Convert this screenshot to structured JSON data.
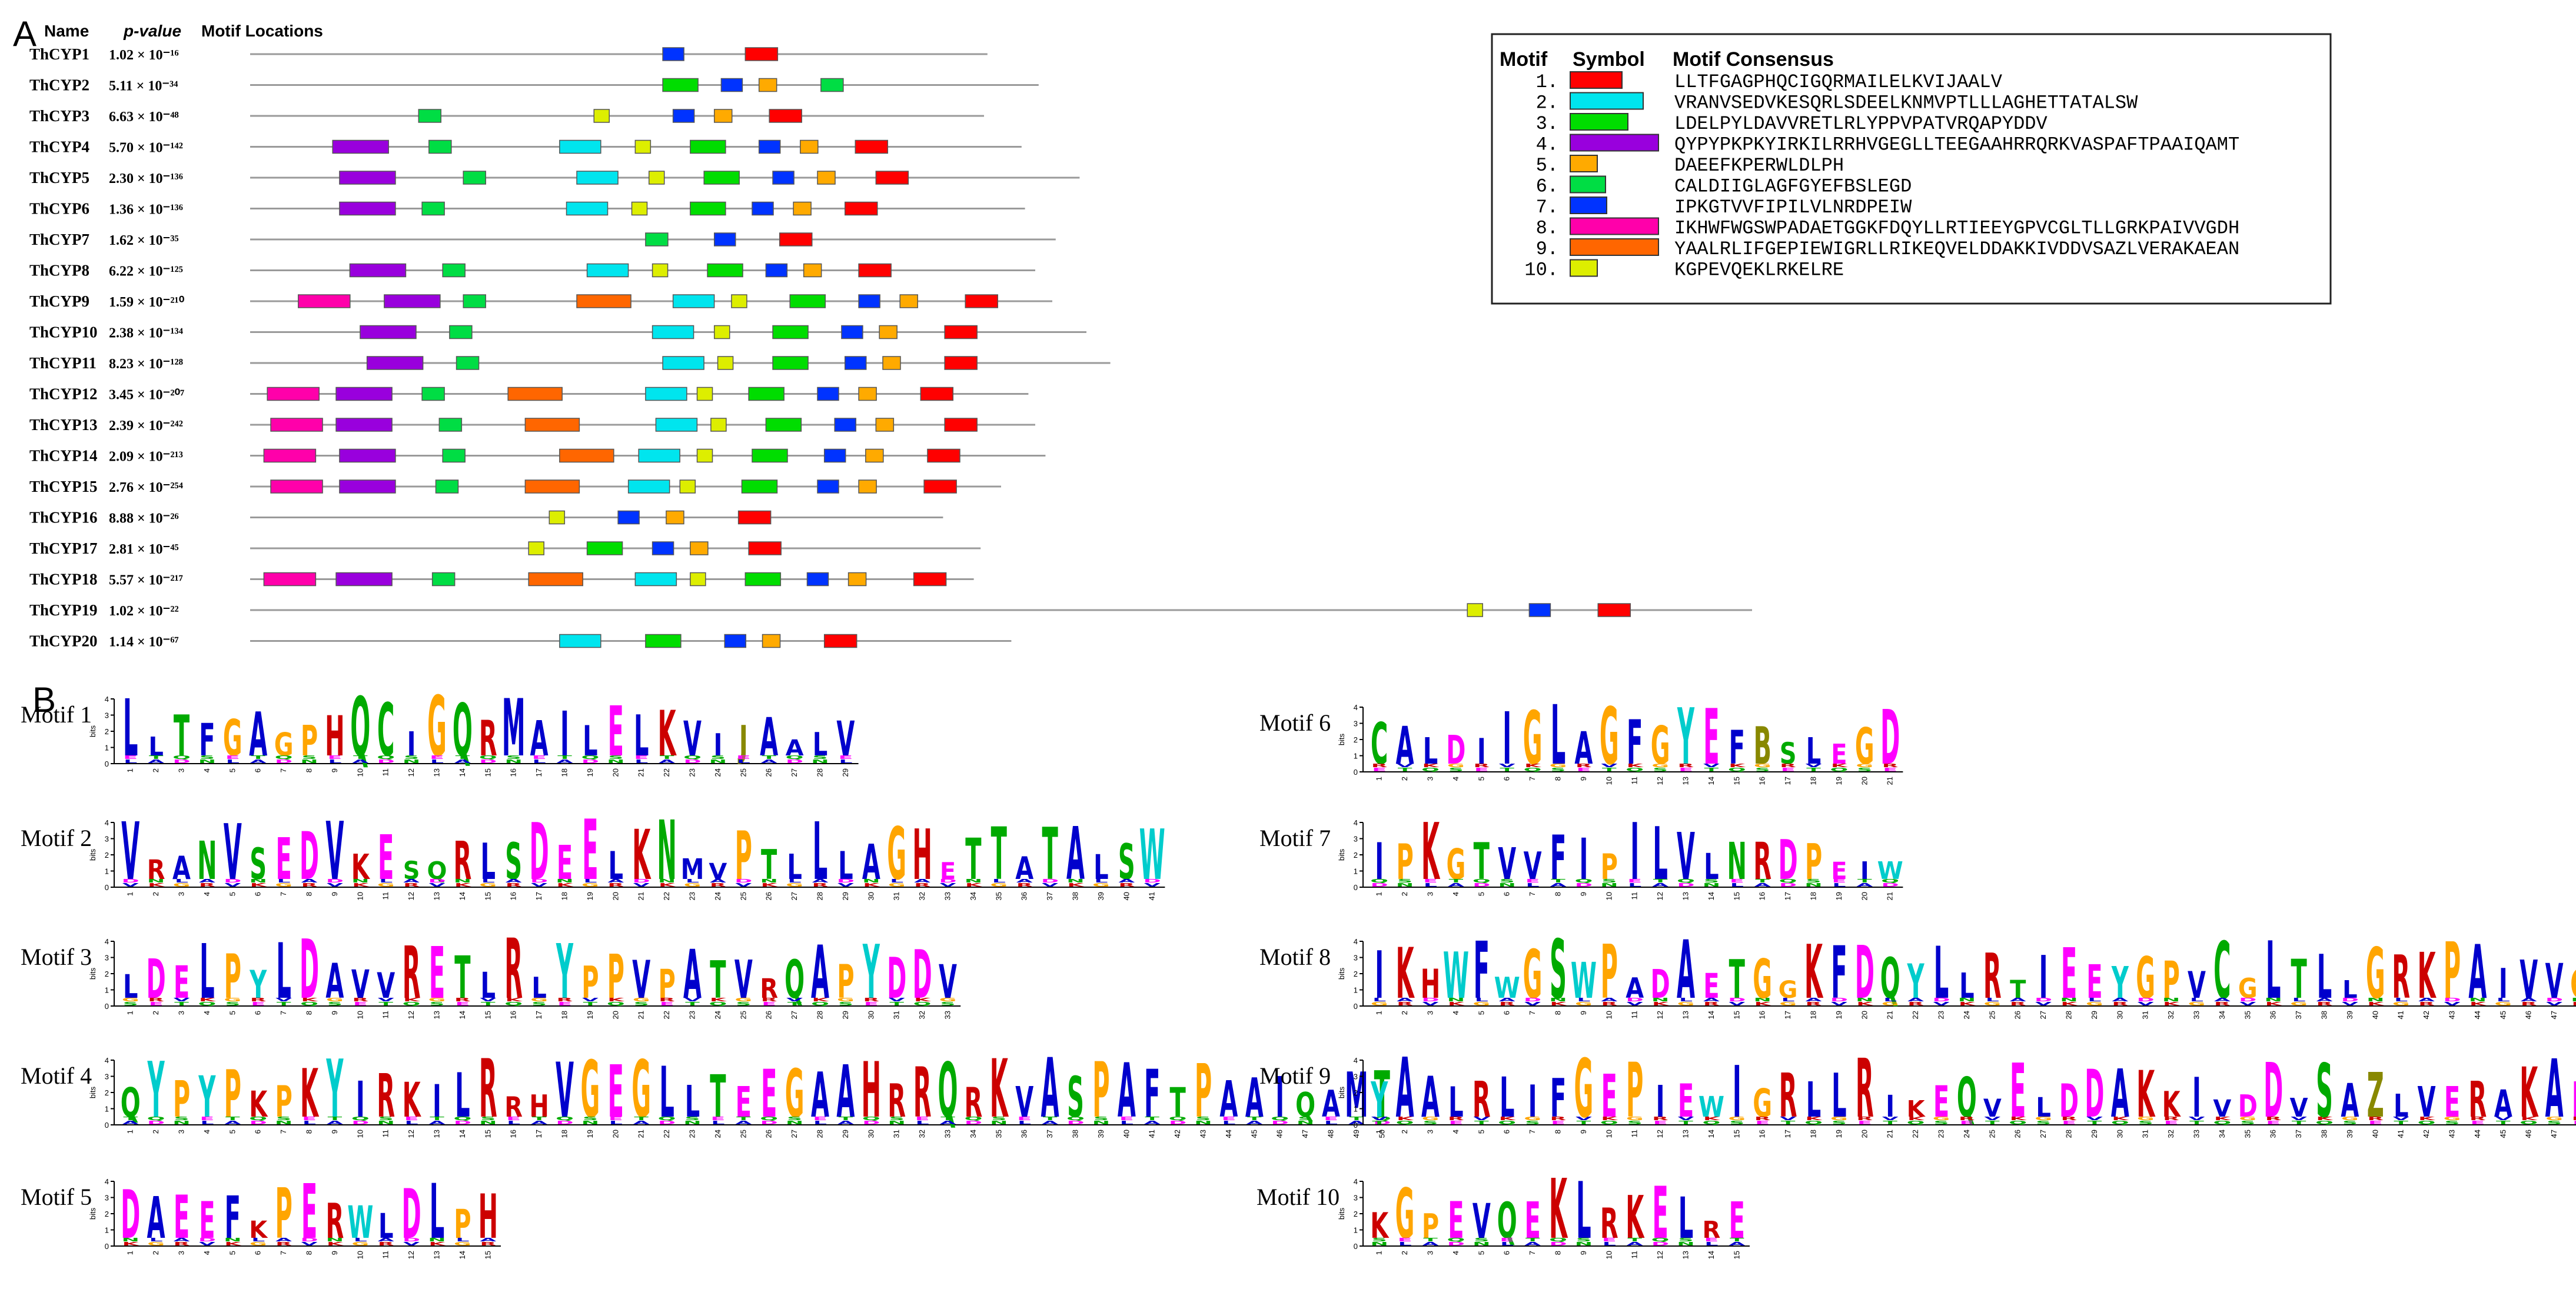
{
  "panel_a": {
    "letter": "A",
    "headers": {
      "name": "Name",
      "pvalue": "p-value",
      "locations": "Motif Locations"
    },
    "motif_colors": {
      "1": "#ff0000",
      "2": "#00e5ee",
      "3": "#00dd00",
      "4": "#9900dd",
      "5": "#ffaa00",
      "6": "#00dd44",
      "7": "#0033ff",
      "8": "#ff00aa",
      "9": "#ff6600",
      "10": "#ddee00"
    },
    "genes": [
      {
        "name": "ThCYP1",
        "pvalue": "1.02 × 10⁻¹⁶",
        "length": 216,
        "motifs": [
          [
            7,
            180
          ],
          [
            1,
            204
          ]
        ]
      },
      {
        "name": "ThCYP2",
        "pvalue": "5.11 × 10⁻³⁴",
        "length": 231,
        "motifs": [
          [
            3,
            180
          ],
          [
            7,
            197
          ],
          [
            5,
            208
          ],
          [
            6,
            226
          ]
        ]
      },
      {
        "name": "ThCYP3",
        "pvalue": "6.63 × 10⁻⁴⁸",
        "length": 215,
        "motifs": [
          [
            6,
            109
          ],
          [
            10,
            160
          ],
          [
            7,
            183
          ],
          [
            5,
            195
          ],
          [
            1,
            211
          ]
        ]
      },
      {
        "name": "ThCYP4",
        "pvalue": "5.70 × 10⁻¹⁴²",
        "length": 226,
        "motifs": [
          [
            4,
            84
          ],
          [
            6,
            112
          ],
          [
            2,
            150
          ],
          [
            10,
            172
          ],
          [
            3,
            188
          ],
          [
            7,
            208
          ],
          [
            5,
            220
          ],
          [
            1,
            236
          ]
        ]
      },
      {
        "name": "ThCYP5",
        "pvalue": "2.30 × 10⁻¹³⁶",
        "length": 243,
        "motifs": [
          [
            4,
            86
          ],
          [
            6,
            122
          ],
          [
            2,
            155
          ],
          [
            10,
            176
          ],
          [
            3,
            192
          ],
          [
            7,
            212
          ],
          [
            5,
            225
          ],
          [
            1,
            242
          ]
        ]
      },
      {
        "name": "ThCYP6",
        "pvalue": "1.36 × 10⁻¹³⁶",
        "length": 227,
        "motifs": [
          [
            4,
            86
          ],
          [
            6,
            110
          ],
          [
            2,
            152
          ],
          [
            10,
            171
          ],
          [
            3,
            188
          ],
          [
            7,
            206
          ],
          [
            5,
            218
          ],
          [
            1,
            233
          ]
        ]
      },
      {
        "name": "ThCYP7",
        "pvalue": "1.62 × 10⁻³⁵",
        "length": 236,
        "motifs": [
          [
            6,
            175
          ],
          [
            7,
            195
          ],
          [
            1,
            214
          ]
        ]
      },
      {
        "name": "ThCYP8",
        "pvalue": "6.22 × 10⁻¹²⁵",
        "length": 230,
        "motifs": [
          [
            4,
            89
          ],
          [
            6,
            116
          ],
          [
            2,
            158
          ],
          [
            10,
            177
          ],
          [
            3,
            193
          ],
          [
            7,
            210
          ],
          [
            5,
            221
          ],
          [
            1,
            237
          ]
        ]
      },
      {
        "name": "ThCYP9",
        "pvalue": "1.59 × 10⁻²¹⁰",
        "length": 235,
        "motifs": [
          [
            8,
            74
          ],
          [
            4,
            99
          ],
          [
            6,
            122
          ],
          [
            9,
            155
          ],
          [
            2,
            183
          ],
          [
            10,
            200
          ],
          [
            3,
            217
          ],
          [
            7,
            237
          ],
          [
            5,
            249
          ],
          [
            1,
            268
          ]
        ]
      },
      {
        "name": "ThCYP10",
        "pvalue": "2.38 × 10⁻¹³⁴",
        "length": 245,
        "motifs": [
          [
            4,
            92
          ],
          [
            6,
            118
          ],
          [
            2,
            177
          ],
          [
            10,
            195
          ],
          [
            3,
            212
          ],
          [
            7,
            232
          ],
          [
            5,
            243
          ],
          [
            1,
            262
          ]
        ]
      },
      {
        "name": "ThCYP11",
        "pvalue": "8.23 × 10⁻¹²⁸",
        "length": 252,
        "motifs": [
          [
            4,
            94
          ],
          [
            6,
            120
          ],
          [
            2,
            180
          ],
          [
            10,
            196
          ],
          [
            3,
            212
          ],
          [
            7,
            233
          ],
          [
            5,
            244
          ],
          [
            1,
            262
          ]
        ]
      },
      {
        "name": "ThCYP12",
        "pvalue": "3.45 × 10⁻²⁰⁷",
        "length": 228,
        "motifs": [
          [
            8,
            65
          ],
          [
            4,
            85
          ],
          [
            6,
            110
          ],
          [
            9,
            135
          ],
          [
            2,
            175
          ],
          [
            10,
            190
          ],
          [
            3,
            205
          ],
          [
            7,
            225
          ],
          [
            5,
            237
          ],
          [
            1,
            255
          ]
        ]
      },
      {
        "name": "ThCYP13",
        "pvalue": "2.39 × 10⁻²⁴²",
        "length": 230,
        "motifs": [
          [
            8,
            66
          ],
          [
            4,
            85
          ],
          [
            6,
            115
          ],
          [
            9,
            140
          ],
          [
            2,
            178
          ],
          [
            10,
            194
          ],
          [
            3,
            210
          ],
          [
            7,
            230
          ],
          [
            5,
            242
          ],
          [
            1,
            262
          ]
        ]
      },
      {
        "name": "ThCYP14",
        "pvalue": "2.09 × 10⁻²¹³",
        "length": 233,
        "motifs": [
          [
            8,
            64
          ],
          [
            4,
            86
          ],
          [
            6,
            116
          ],
          [
            9,
            150
          ],
          [
            2,
            173
          ],
          [
            10,
            190
          ],
          [
            3,
            206
          ],
          [
            7,
            227
          ],
          [
            5,
            239
          ],
          [
            1,
            257
          ]
        ]
      },
      {
        "name": "ThCYP15",
        "pvalue": "2.76 × 10⁻²⁵⁴",
        "length": 220,
        "motifs": [
          [
            8,
            66
          ],
          [
            4,
            86
          ],
          [
            6,
            114
          ],
          [
            9,
            140
          ],
          [
            2,
            170
          ],
          [
            10,
            185
          ],
          [
            3,
            203
          ],
          [
            7,
            225
          ],
          [
            5,
            237
          ],
          [
            1,
            256
          ]
        ]
      },
      {
        "name": "ThCYP16",
        "pvalue": "8.88 × 10⁻²⁶",
        "length": 203,
        "motifs": [
          [
            10,
            147
          ],
          [
            7,
            167
          ],
          [
            5,
            181
          ],
          [
            1,
            202
          ]
        ]
      },
      {
        "name": "ThCYP17",
        "pvalue": "2.81 × 10⁻⁴⁵",
        "length": 214,
        "motifs": [
          [
            10,
            141
          ],
          [
            3,
            158
          ],
          [
            7,
            177
          ],
          [
            5,
            188
          ],
          [
            1,
            205
          ]
        ]
      },
      {
        "name": "ThCYP18",
        "pvalue": "5.57 × 10⁻²¹⁷",
        "length": 212,
        "motifs": [
          [
            8,
            64
          ],
          [
            4,
            85
          ],
          [
            6,
            113
          ],
          [
            9,
            141
          ],
          [
            2,
            172
          ],
          [
            10,
            188
          ],
          [
            3,
            204
          ],
          [
            7,
            222
          ],
          [
            5,
            234
          ],
          [
            1,
            253
          ]
        ]
      },
      {
        "name": "ThCYP19",
        "pvalue": "1.02 × 10⁻²²",
        "length": 440,
        "motifs": [
          [
            10,
            414
          ],
          [
            7,
            432
          ],
          [
            1,
            452
          ]
        ]
      },
      {
        "name": "ThCYP20",
        "pvalue": "1.14 × 10⁻⁶⁷",
        "length": 223,
        "motifs": [
          [
            2,
            150
          ],
          [
            3,
            175
          ],
          [
            7,
            198
          ],
          [
            5,
            209
          ],
          [
            1,
            227
          ]
        ]
      }
    ]
  },
  "legend": {
    "headers": {
      "motif": "Motif",
      "symbol": "Symbol",
      "consensus": "Motif Consensus"
    },
    "rows": [
      {
        "num": "1.",
        "motif": 1,
        "consensus": "LLTFGAGPHQCIGQRMAILELKVIJAALV"
      },
      {
        "num": "2.",
        "motif": 2,
        "consensus": "VRANVSEDVKESQRLSDEELKNMVPTLLLAGHETTATALSW"
      },
      {
        "num": "3.",
        "motif": 3,
        "consensus": "LDELPYLDAVVRETLRLYPPVPATVRQAPYDDV"
      },
      {
        "num": "4.",
        "motif": 4,
        "consensus": "QYPYPKPKYIRKILRRHVGEGLLTEEGAAHRRQRKVASPAFTPAAIQAMT"
      },
      {
        "num": "5.",
        "motif": 5,
        "consensus": "DAEEFKPERWLDLPH"
      },
      {
        "num": "6.",
        "motif": 6,
        "consensus": "CALDIIGLAGFGYEFBSLEGD"
      },
      {
        "num": "7.",
        "motif": 7,
        "consensus": "IPKGTVVFIPILVLNRDPEIW"
      },
      {
        "num": "8.",
        "motif": 8,
        "consensus": "IKHWFWGSWPADAETGGKFDQYLLRTIEEYGPVCGLTLLGRKPAIVVGDH"
      },
      {
        "num": "9.",
        "motif": 9,
        "consensus": "YAALRLIFGEPIEWIGRLLRIKEQVELDDAKKIVDDVSAZLVERAKAEAN"
      },
      {
        "num": "10.",
        "motif": 10,
        "consensus": "KGPEVQEKLRKELRE"
      }
    ]
  },
  "panel_b": {
    "letter": "B",
    "ylabel": "bits",
    "yticks": [
      "0",
      "1",
      "2",
      "3",
      "4"
    ],
    "motifs": [
      {
        "label": "Motif 1",
        "seq": "LLTFGAGPHQCIGQRMAILELKVIJAALV"
      },
      {
        "label": "Motif 2",
        "seq": "VRANVSEDVKESQRLSDEELKNMVPTLLLAGHETTATALSW"
      },
      {
        "label": "Motif 3",
        "seq": "LDELPYLDAVVRETLRLYPPVPATVRQAPYDDV"
      },
      {
        "label": "Motif 4",
        "seq": "QYPYPKPKYIRKILRRHVGEGLLTEEGAAHRRQRKVASPAFTPAAIQAMT"
      },
      {
        "label": "Motif 5",
        "seq": "DAEEFKPERWLDLPH"
      },
      {
        "label": "Motif 6",
        "seq": "CALDIIGLAGFGYEFBSLEGD"
      },
      {
        "label": "Motif 7",
        "seq": "IPKGTVVFIPILVLNRDPEIW"
      },
      {
        "label": "Motif 8",
        "seq": "IKHWFWGSWPADAETGGKFDQYLLRTIEEYGPVCGLTLLGRKPAIVVGDH"
      },
      {
        "label": "Motif 9",
        "seq": "YAALRLIFGEPIEWIGRLLRIKEQVELDDAKKIVDDVSAZLVERAKAEAN"
      },
      {
        "label": "Motif 10",
        "seq": "KGPEVQEKLRKELRE"
      }
    ],
    "residue_colors": {
      "acidic": "#ff00ff",
      "basic": "#cc0000",
      "hydrophobic": "#0000cc",
      "glycine_proline": "#ffa500",
      "polar": "#00aa00",
      "amide": "#ff99cc",
      "aromatic_small": "#00cccc",
      "other": "#888800"
    }
  }
}
